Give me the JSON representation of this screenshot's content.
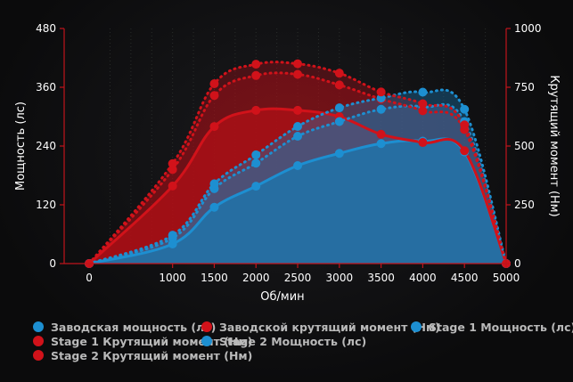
{
  "chart_data": {
    "type": "line",
    "x": [
      0,
      1000,
      1500,
      2000,
      2500,
      3000,
      3500,
      4000,
      4500,
      5000
    ],
    "xlabel": "Об/мин",
    "ylabel_left": "Мощность (лс)",
    "ylabel_right": "Крутящий момент (Нм)",
    "xlim": [
      -300,
      5000
    ],
    "ylim_left": [
      0,
      480
    ],
    "ylim_right": [
      0,
      1000
    ],
    "xticks": [
      "0",
      "1000",
      "1500",
      "2000",
      "2500",
      "3000",
      "3500",
      "4000",
      "4500",
      "5000"
    ],
    "yticks_left": [
      "0",
      "120",
      "240",
      "360",
      "480"
    ],
    "yticks_right": [
      "0",
      "250",
      "500",
      "750",
      "1000"
    ],
    "grid": "vertical-dotted",
    "legend_placement": "bottom-left",
    "series": [
      {
        "name": "Заводская мощность (лс)",
        "axis": "left",
        "style": "solid",
        "color": "#1d8fd1",
        "fill": "#1a78b2",
        "marker": [
          0,
          1000,
          1500,
          2000,
          2500,
          3000,
          3500,
          4000,
          4500,
          5000
        ],
        "values": [
          0,
          40,
          115,
          158,
          200,
          225,
          245,
          250,
          228,
          0
        ]
      },
      {
        "name": "Заводской крутящий момент (Нм)",
        "axis": "right",
        "style": "solid",
        "color": "#d1121a",
        "fill": "#b30f16",
        "values": [
          0,
          330,
          583,
          652,
          652,
          625,
          550,
          515,
          480,
          0
        ]
      },
      {
        "name": "Stage 1 Мощность (лс)",
        "axis": "left",
        "style": "dotted",
        "color": "#1d8fd1",
        "fill": "#1a78b2",
        "values": [
          0,
          52,
          153,
          205,
          260,
          290,
          315,
          320,
          290,
          0
        ]
      },
      {
        "name": "Stage 1 Крутящий момент (Нм)",
        "axis": "right",
        "style": "dotted",
        "color": "#d1121a",
        "fill": "#b30f16",
        "values": [
          0,
          400,
          715,
          800,
          805,
          760,
          700,
          650,
          570,
          0
        ]
      },
      {
        "name": "Stage 2 Мощность (лс)",
        "axis": "left",
        "style": "dotted",
        "color": "#1d8fd1",
        "fill": "#1a78b2",
        "values": [
          0,
          58,
          163,
          222,
          280,
          318,
          338,
          350,
          315,
          0
        ]
      },
      {
        "name": "Stage 2 Крутящий момент (Нм)",
        "axis": "right",
        "style": "dotted",
        "color": "#d1121a",
        "fill": "#b30f16",
        "values": [
          0,
          425,
          765,
          848,
          850,
          810,
          730,
          680,
          590,
          0
        ]
      }
    ],
    "legend_rows": [
      [
        "Заводская мощность (лс)",
        "Заводской крутящий момент (Нм)",
        "Stage 1 Мощность (лс)"
      ],
      [
        "Stage 1 Крутящий момент (Нм)",
        "Stage 2 Мощность (лс)"
      ],
      [
        "Stage 2 Крутящий момент (Нм)"
      ]
    ]
  }
}
